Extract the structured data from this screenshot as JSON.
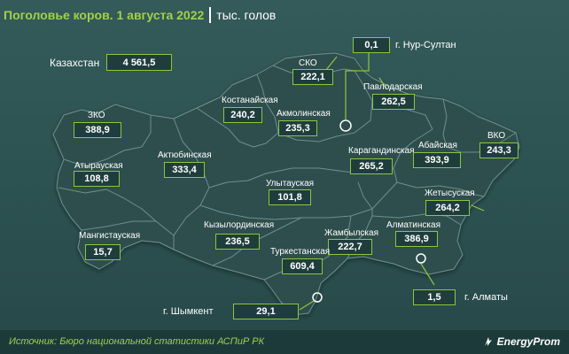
{
  "title": {
    "main": "Поголовье коров. 1 августа 2022",
    "unit": "тыс. голов"
  },
  "total": {
    "label": "Казахстан",
    "value": "4 561,5"
  },
  "regions": [
    {
      "id": "sko",
      "name": "СКО",
      "value": "222,1"
    },
    {
      "id": "pavlodar",
      "name": "Павлодарская",
      "value": "262,5"
    },
    {
      "id": "kostanay",
      "name": "Костанайская",
      "value": "240,2"
    },
    {
      "id": "akmola",
      "name": "Акмолинская",
      "value": "235,3"
    },
    {
      "id": "zko",
      "name": "ЗКО",
      "value": "388,9"
    },
    {
      "id": "aktobe",
      "name": "Актюбинская",
      "value": "333,4"
    },
    {
      "id": "karaganda",
      "name": "Карагандинская",
      "value": "265,2"
    },
    {
      "id": "abay",
      "name": "Абайская",
      "value": "393,9"
    },
    {
      "id": "vko",
      "name": "ВКО",
      "value": "243,3"
    },
    {
      "id": "atyrau",
      "name": "Атырауская",
      "value": "108,8"
    },
    {
      "id": "ulytau",
      "name": "Улытауская",
      "value": "101,8"
    },
    {
      "id": "zhetysu",
      "name": "Жетысуская",
      "value": "264,2"
    },
    {
      "id": "kyzylorda",
      "name": "Кызылординская",
      "value": "236,5"
    },
    {
      "id": "almaty_reg",
      "name": "Алматинская",
      "value": "386,9"
    },
    {
      "id": "mangystau",
      "name": "Мангистауская",
      "value": "15,7"
    },
    {
      "id": "zhambyl",
      "name": "Жамбылская",
      "value": "222,7"
    },
    {
      "id": "turkestan",
      "name": "Туркестанская",
      "value": "609,4"
    }
  ],
  "cities": [
    {
      "id": "astana",
      "name": "г. Нур-Султан",
      "value": "0,1"
    },
    {
      "id": "almaty",
      "name": "г. Алматы",
      "value": "1,5"
    },
    {
      "id": "shymkent",
      "name": "г. Шымкент",
      "value": "29,1"
    }
  ],
  "footer": {
    "source": "Источник: Бюро национальной статистики АСПиР РК",
    "brand": "EnergyProm"
  },
  "colors": {
    "background": "#2e5050",
    "region_fill": "#2f4d4d",
    "region_border": "#6f8f8f",
    "accent": "#8cc63f",
    "title_green": "#9fd24a"
  }
}
